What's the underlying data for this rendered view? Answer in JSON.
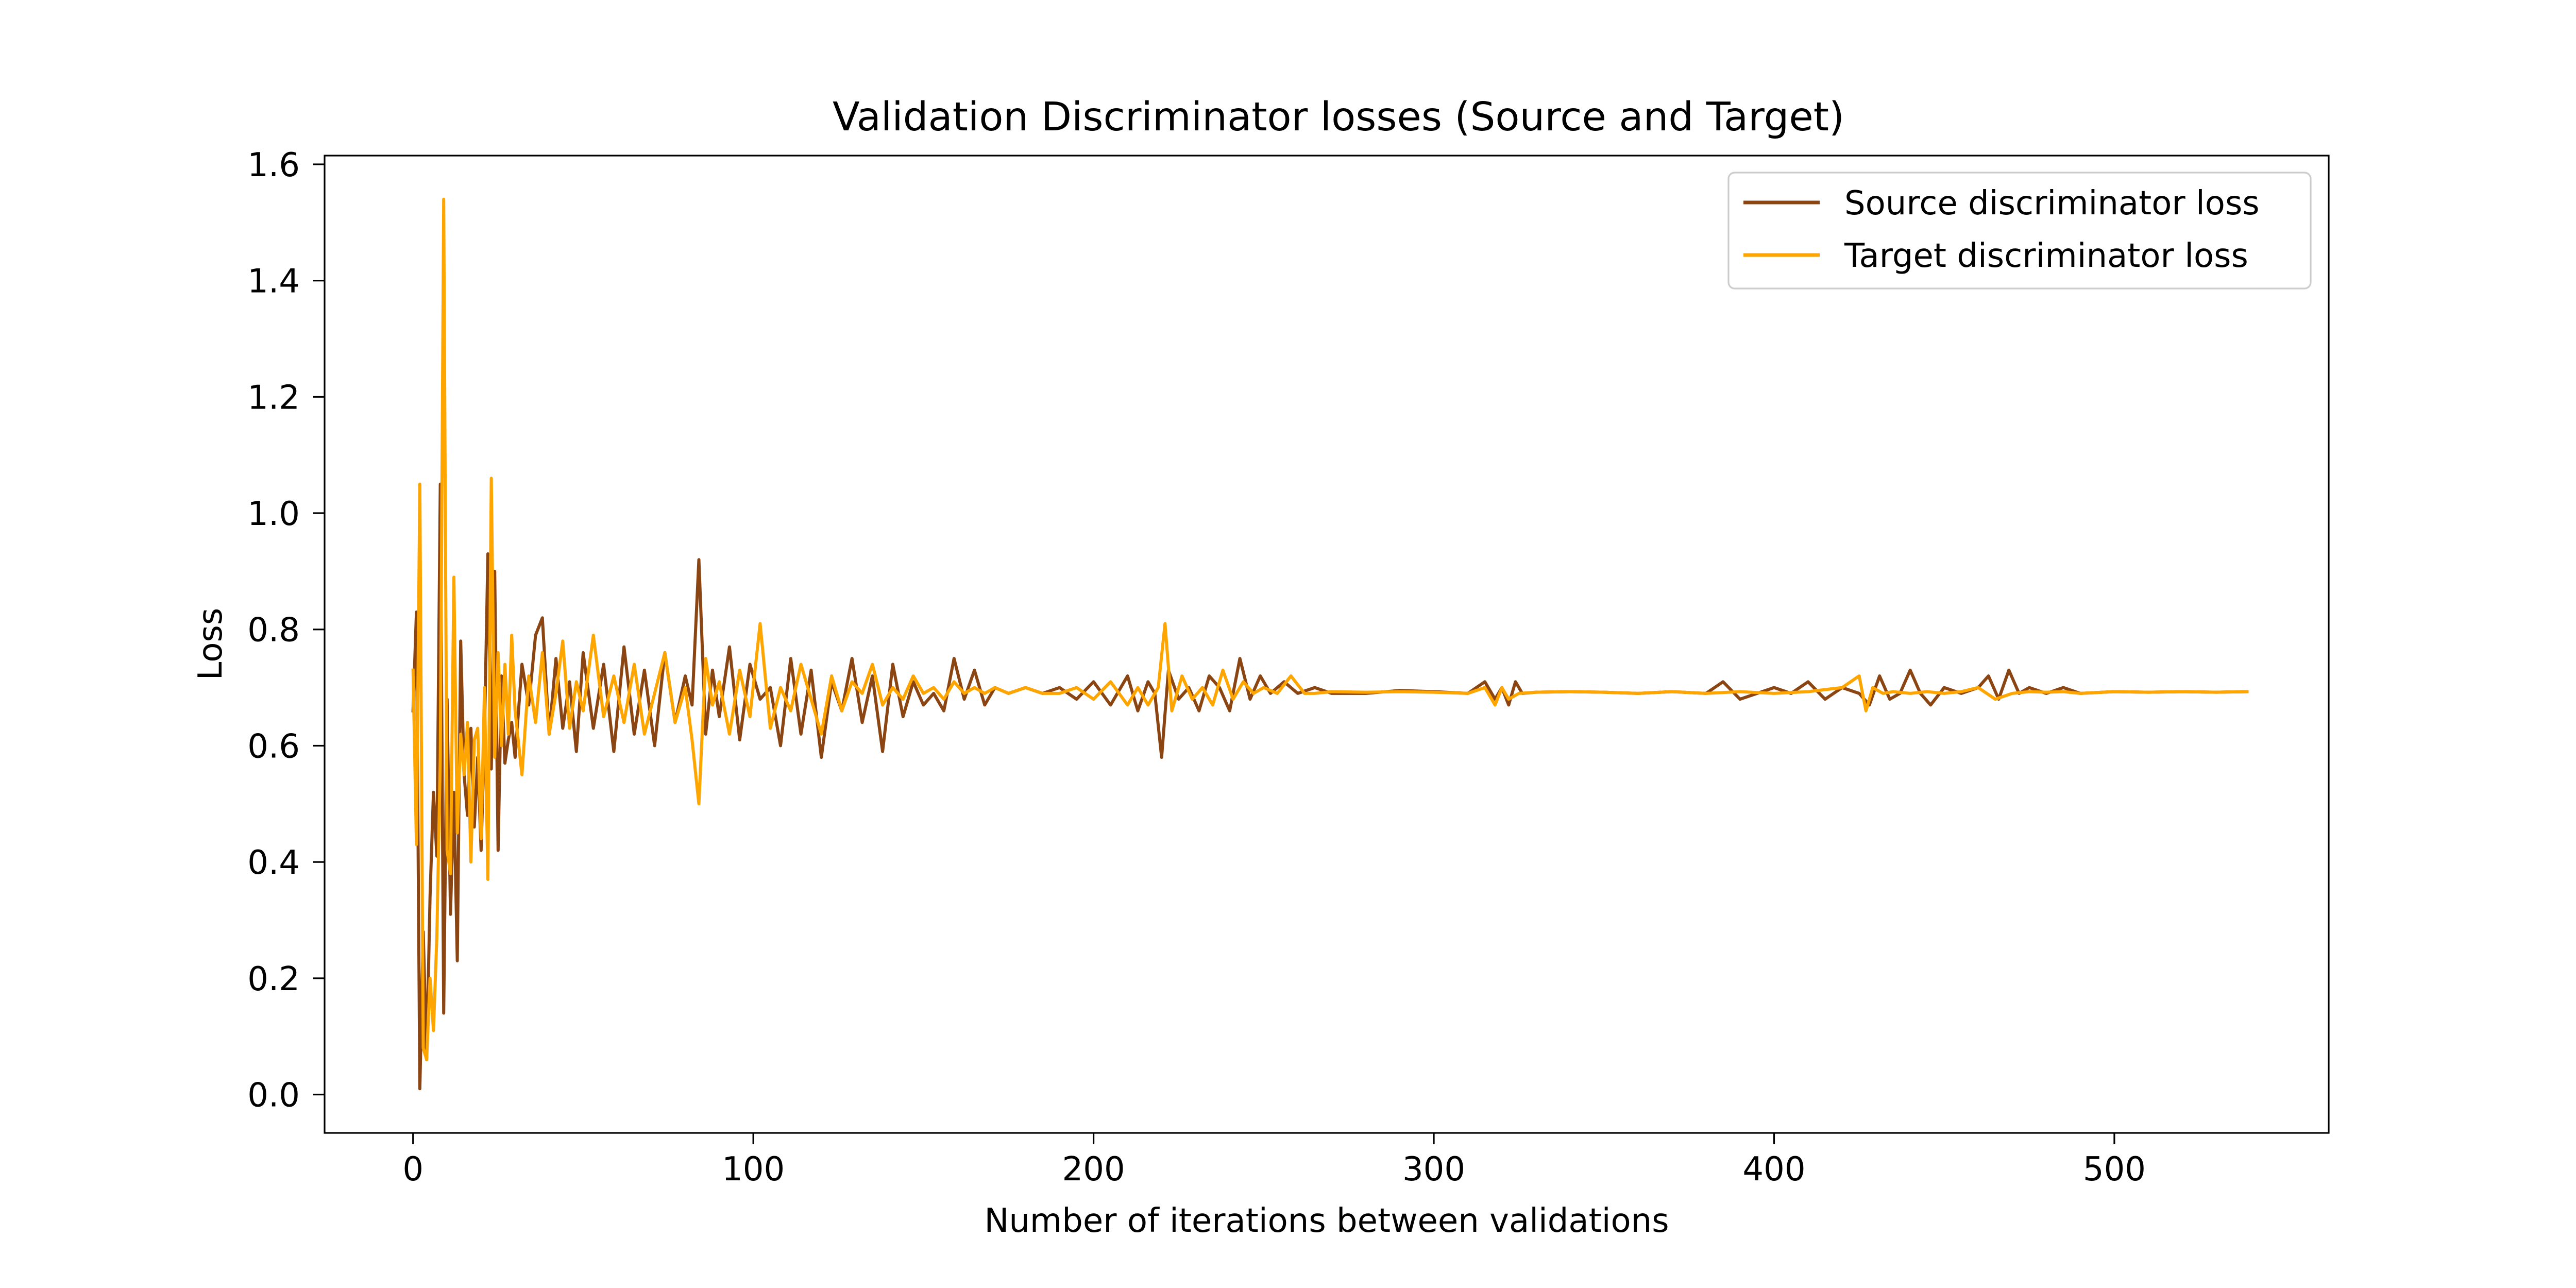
{
  "chart_data": {
    "type": "line",
    "title": "Validation Discriminator losses (Source and Target)",
    "xlabel": "Number of iterations between validations",
    "ylabel": "Loss",
    "xlim": [
      -26,
      563
    ],
    "ylim": [
      -0.066,
      1.615
    ],
    "xticks": [
      0,
      100,
      200,
      300,
      400,
      500
    ],
    "xtick_labels": [
      "0",
      "100",
      "200",
      "300",
      "400",
      "500"
    ],
    "yticks": [
      0.0,
      0.2,
      0.4,
      0.6,
      0.8,
      1.0,
      1.2,
      1.4,
      1.6
    ],
    "ytick_labels": [
      "0.0",
      "0.2",
      "0.4",
      "0.6",
      "0.8",
      "1.0",
      "1.2",
      "1.4",
      "1.6"
    ],
    "grid": false,
    "legend_position": "top-right",
    "series": [
      {
        "name": "Source discriminator loss",
        "color": "#8b4513",
        "x": [
          0,
          1,
          2,
          3,
          4,
          5,
          6,
          7,
          8,
          9,
          10,
          11,
          12,
          13,
          14,
          15,
          16,
          17,
          18,
          19,
          20,
          21,
          22,
          23,
          24,
          25,
          26,
          27,
          28,
          29,
          30,
          32,
          34,
          36,
          38,
          40,
          42,
          44,
          46,
          48,
          50,
          53,
          56,
          59,
          62,
          65,
          68,
          71,
          74,
          77,
          80,
          82,
          84,
          86,
          88,
          90,
          93,
          96,
          99,
          102,
          105,
          108,
          111,
          114,
          117,
          120,
          123,
          126,
          129,
          132,
          135,
          138,
          141,
          144,
          147,
          150,
          153,
          156,
          159,
          162,
          165,
          168,
          171,
          175,
          180,
          185,
          190,
          195,
          200,
          205,
          210,
          213,
          216,
          218,
          220,
          222,
          225,
          228,
          231,
          234,
          237,
          240,
          243,
          246,
          249,
          252,
          256,
          260,
          265,
          270,
          280,
          290,
          300,
          310,
          315,
          318,
          320,
          322,
          324,
          326,
          330,
          340,
          350,
          360,
          370,
          380,
          385,
          390,
          395,
          400,
          405,
          410,
          415,
          420,
          425,
          428,
          431,
          434,
          437,
          440,
          443,
          446,
          450,
          455,
          460,
          463,
          466,
          469,
          472,
          475,
          480,
          485,
          490,
          500,
          510,
          520,
          530,
          539
        ],
        "y": [
          0.66,
          0.83,
          0.01,
          0.28,
          0.06,
          0.34,
          0.52,
          0.41,
          1.05,
          0.14,
          0.68,
          0.31,
          0.52,
          0.23,
          0.78,
          0.55,
          0.48,
          0.63,
          0.46,
          0.58,
          0.42,
          0.62,
          0.93,
          0.56,
          0.9,
          0.42,
          0.72,
          0.57,
          0.61,
          0.64,
          0.58,
          0.74,
          0.67,
          0.79,
          0.82,
          0.62,
          0.75,
          0.63,
          0.71,
          0.59,
          0.76,
          0.63,
          0.74,
          0.59,
          0.77,
          0.62,
          0.73,
          0.6,
          0.76,
          0.64,
          0.72,
          0.67,
          0.92,
          0.62,
          0.73,
          0.65,
          0.77,
          0.61,
          0.74,
          0.68,
          0.7,
          0.6,
          0.75,
          0.62,
          0.73,
          0.58,
          0.71,
          0.66,
          0.75,
          0.64,
          0.72,
          0.59,
          0.74,
          0.65,
          0.71,
          0.67,
          0.69,
          0.66,
          0.75,
          0.68,
          0.73,
          0.67,
          0.7,
          0.69,
          0.7,
          0.69,
          0.7,
          0.68,
          0.71,
          0.67,
          0.72,
          0.66,
          0.71,
          0.69,
          0.58,
          0.73,
          0.68,
          0.7,
          0.66,
          0.72,
          0.7,
          0.66,
          0.75,
          0.68,
          0.72,
          0.69,
          0.71,
          0.69,
          0.7,
          0.69,
          0.69,
          0.695,
          0.693,
          0.69,
          0.71,
          0.68,
          0.7,
          0.67,
          0.71,
          0.69,
          0.692,
          0.693,
          0.692,
          0.69,
          0.693,
          0.69,
          0.71,
          0.68,
          0.69,
          0.7,
          0.69,
          0.71,
          0.68,
          0.7,
          0.69,
          0.67,
          0.72,
          0.68,
          0.69,
          0.73,
          0.69,
          0.67,
          0.7,
          0.69,
          0.7,
          0.72,
          0.68,
          0.73,
          0.69,
          0.7,
          0.69,
          0.7,
          0.69,
          0.693,
          0.692,
          0.693,
          0.692,
          0.693
        ]
      },
      {
        "name": "Target discriminator loss",
        "color": "#ffa500",
        "x": [
          0,
          1,
          2,
          3,
          4,
          5,
          6,
          7,
          8,
          9,
          10,
          11,
          12,
          13,
          14,
          15,
          16,
          17,
          18,
          19,
          20,
          21,
          22,
          23,
          24,
          25,
          26,
          27,
          28,
          29,
          30,
          32,
          34,
          36,
          38,
          40,
          42,
          44,
          46,
          48,
          50,
          53,
          56,
          59,
          62,
          65,
          68,
          71,
          74,
          77,
          80,
          82,
          84,
          86,
          88,
          90,
          93,
          96,
          99,
          102,
          105,
          108,
          111,
          114,
          117,
          120,
          123,
          126,
          129,
          132,
          135,
          138,
          141,
          144,
          147,
          150,
          153,
          156,
          159,
          162,
          165,
          168,
          171,
          175,
          180,
          185,
          190,
          195,
          200,
          205,
          210,
          213,
          216,
          219,
          221,
          223,
          226,
          229,
          232,
          235,
          238,
          241,
          244,
          247,
          250,
          254,
          258,
          262,
          265,
          270,
          280,
          290,
          300,
          310,
          315,
          318,
          320,
          322,
          325,
          330,
          340,
          350,
          360,
          370,
          380,
          390,
          400,
          410,
          420,
          425,
          427,
          429,
          432,
          435,
          440,
          445,
          450,
          455,
          460,
          465,
          470,
          475,
          480,
          485,
          490,
          500,
          510,
          520,
          530,
          539
        ],
        "y": [
          0.73,
          0.43,
          1.05,
          0.08,
          0.06,
          0.2,
          0.11,
          0.27,
          0.58,
          1.54,
          0.42,
          0.38,
          0.89,
          0.45,
          0.62,
          0.55,
          0.64,
          0.4,
          0.61,
          0.63,
          0.44,
          0.7,
          0.37,
          1.06,
          0.58,
          0.76,
          0.6,
          0.74,
          0.62,
          0.79,
          0.66,
          0.55,
          0.72,
          0.64,
          0.76,
          0.62,
          0.69,
          0.78,
          0.63,
          0.71,
          0.66,
          0.79,
          0.65,
          0.72,
          0.64,
          0.74,
          0.62,
          0.69,
          0.76,
          0.64,
          0.7,
          0.61,
          0.5,
          0.75,
          0.67,
          0.71,
          0.62,
          0.73,
          0.65,
          0.81,
          0.63,
          0.7,
          0.66,
          0.74,
          0.68,
          0.62,
          0.72,
          0.66,
          0.71,
          0.69,
          0.74,
          0.67,
          0.7,
          0.68,
          0.72,
          0.69,
          0.7,
          0.68,
          0.71,
          0.69,
          0.7,
          0.69,
          0.7,
          0.69,
          0.7,
          0.69,
          0.69,
          0.7,
          0.68,
          0.71,
          0.67,
          0.7,
          0.67,
          0.7,
          0.81,
          0.66,
          0.72,
          0.68,
          0.7,
          0.67,
          0.73,
          0.68,
          0.71,
          0.69,
          0.7,
          0.69,
          0.72,
          0.69,
          0.69,
          0.693,
          0.692,
          0.693,
          0.692,
          0.69,
          0.7,
          0.67,
          0.7,
          0.68,
          0.69,
          0.692,
          0.693,
          0.692,
          0.69,
          0.693,
          0.69,
          0.693,
          0.69,
          0.693,
          0.7,
          0.72,
          0.66,
          0.7,
          0.69,
          0.693,
          0.69,
          0.693,
          0.69,
          0.693,
          0.7,
          0.68,
          0.69,
          0.693,
          0.692,
          0.693,
          0.69,
          0.693,
          0.692,
          0.693,
          0.692,
          0.693
        ]
      }
    ]
  }
}
